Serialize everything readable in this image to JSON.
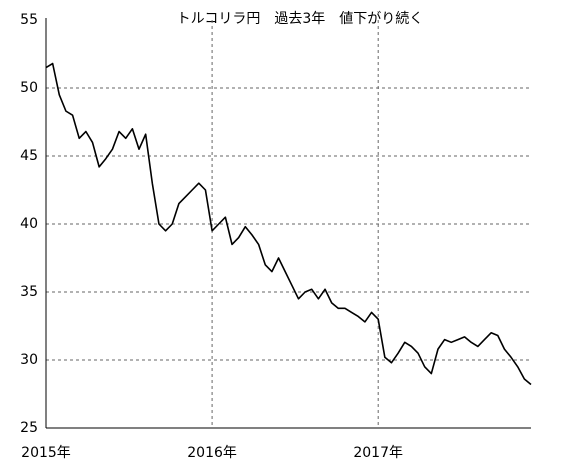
{
  "chart_data": {
    "type": "line",
    "title": "トルコリラ円　過去3年　値下がり続く",
    "categories": [
      "2015年",
      null,
      null,
      null,
      null,
      null,
      null,
      null,
      null,
      null,
      null,
      null,
      null,
      null,
      null,
      null,
      null,
      null,
      null,
      null,
      null,
      null,
      null,
      null,
      null,
      "2016年",
      null,
      null,
      null,
      null,
      null,
      null,
      null,
      null,
      null,
      null,
      null,
      null,
      null,
      null,
      null,
      null,
      null,
      null,
      null,
      null,
      null,
      null,
      null,
      null,
      "2017年",
      null,
      null,
      null,
      null,
      null,
      null,
      null,
      null,
      null,
      null,
      null,
      null,
      null,
      null,
      null,
      null,
      null,
      null,
      null,
      null,
      null,
      null,
      null
    ],
    "values": [
      51.5,
      51.8,
      49.5,
      48.3,
      48.0,
      46.3,
      46.8,
      46.0,
      44.2,
      44.8,
      45.5,
      46.8,
      46.3,
      47.0,
      45.5,
      46.6,
      43.0,
      40.0,
      39.5,
      40.0,
      41.5,
      42.0,
      42.5,
      43.0,
      42.5,
      39.5,
      40.0,
      40.5,
      38.5,
      39.0,
      39.8,
      39.2,
      38.5,
      37.0,
      36.5,
      37.5,
      36.5,
      35.5,
      34.5,
      35.0,
      35.2,
      34.5,
      35.2,
      34.2,
      33.8,
      33.8,
      33.5,
      33.2,
      32.8,
      33.5,
      33.0,
      30.2,
      29.8,
      30.5,
      31.3,
      31.0,
      30.5,
      29.5,
      29.0,
      30.8,
      31.5,
      31.3,
      31.5,
      31.7,
      31.3,
      31.0,
      31.5,
      32.0,
      31.8,
      30.8,
      30.2,
      29.5,
      28.6,
      28.2
    ],
    "color": "#000000",
    "ylim": [
      25,
      55
    ],
    "yticks": [
      25,
      30,
      35,
      40,
      45,
      50,
      55
    ],
    "grid": true
  }
}
